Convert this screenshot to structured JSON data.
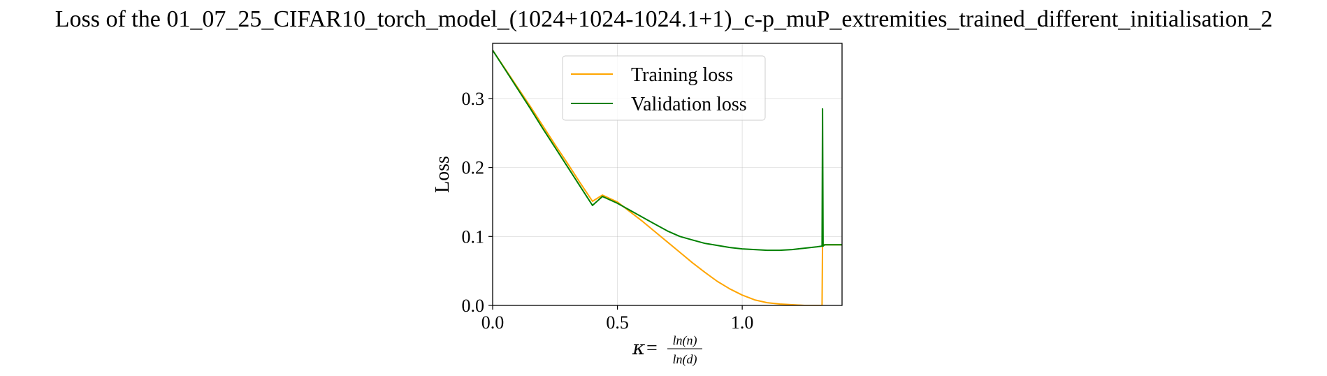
{
  "chart_data": {
    "type": "line",
    "title": "Loss of the 01_07_25_CIFAR10_torch_model_(1024+1024-1024.1+1)_c-p_muP_extremities_trained_different_initialisation_2",
    "xlabel": {
      "prefix": "κ",
      "equals": "=",
      "numerator": "ln(n)",
      "denominator": "ln(d)"
    },
    "ylabel": "Loss",
    "xlim": [
      0.0,
      1.4
    ],
    "ylim": [
      0.0,
      0.38
    ],
    "xticks": [
      0.0,
      0.5,
      1.0
    ],
    "xtick_labels": [
      "0.0",
      "0.5",
      "1.0"
    ],
    "yticks": [
      0.0,
      0.1,
      0.2,
      0.3
    ],
    "ytick_labels": [
      "0.0",
      "0.1",
      "0.2",
      "0.3"
    ],
    "grid": true,
    "legend_position": "top",
    "series": [
      {
        "name": "Training loss",
        "color": "#FFA500",
        "x": [
          0.0,
          0.05,
          0.1,
          0.15,
          0.2,
          0.25,
          0.3,
          0.35,
          0.4,
          0.44,
          0.5,
          0.55,
          0.6,
          0.65,
          0.7,
          0.75,
          0.8,
          0.85,
          0.9,
          0.95,
          1.0,
          1.05,
          1.1,
          1.15,
          1.2,
          1.25,
          1.3,
          1.32,
          1.322,
          1.325,
          1.33,
          1.35,
          1.4
        ],
        "y": [
          0.37,
          0.343,
          0.316,
          0.289,
          0.261,
          0.233,
          0.206,
          0.178,
          0.151,
          0.16,
          0.15,
          0.136,
          0.122,
          0.107,
          0.092,
          0.077,
          0.062,
          0.048,
          0.035,
          0.024,
          0.015,
          0.008,
          0.004,
          0.002,
          0.001,
          0.0,
          0.0,
          0.0,
          0.09,
          0.088,
          0.088,
          0.088,
          0.088
        ]
      },
      {
        "name": "Validation loss",
        "color": "#008000",
        "x": [
          0.0,
          0.05,
          0.1,
          0.15,
          0.2,
          0.25,
          0.3,
          0.35,
          0.4,
          0.44,
          0.5,
          0.55,
          0.6,
          0.65,
          0.7,
          0.75,
          0.8,
          0.85,
          0.9,
          0.95,
          1.0,
          1.05,
          1.1,
          1.15,
          1.2,
          1.25,
          1.3,
          1.32,
          1.322,
          1.324,
          1.33,
          1.35,
          1.4
        ],
        "y": [
          0.37,
          0.342,
          0.314,
          0.286,
          0.257,
          0.229,
          0.201,
          0.173,
          0.145,
          0.158,
          0.148,
          0.138,
          0.128,
          0.118,
          0.108,
          0.1,
          0.095,
          0.09,
          0.087,
          0.084,
          0.082,
          0.081,
          0.08,
          0.08,
          0.081,
          0.083,
          0.085,
          0.086,
          0.285,
          0.086,
          0.088,
          0.088,
          0.088
        ]
      }
    ]
  }
}
